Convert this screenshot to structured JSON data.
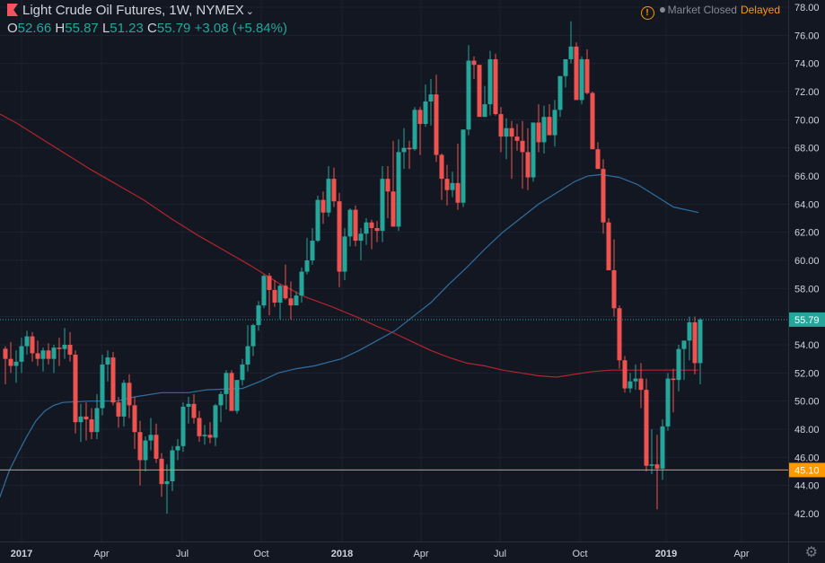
{
  "header": {
    "symbol_title": "Light Crude Oil Futures, 1W, NYMEX",
    "ohlc": {
      "open_label": "O",
      "open": "52.66",
      "high_label": "H",
      "high": "55.87",
      "low_label": "L",
      "low": "51.23",
      "close_label": "C",
      "close": "55.79",
      "change": "+3.08 (+5.84%)"
    },
    "market_status": "Market Closed",
    "data_status": "Delayed"
  },
  "icons": {
    "flag": "flag-icon",
    "chevron": "chevron-down-icon",
    "warning": "warning-icon",
    "settings": "gear-icon"
  },
  "colors": {
    "background": "#131722",
    "up": "#26a69a",
    "down": "#ef5350",
    "ma_fast": "#2f6fa0",
    "ma_slow": "#b3242c",
    "support_line": "#ff9800",
    "last_price": "#26a69a",
    "grid": "#1e2230",
    "axis_text": "#d1d4dc"
  },
  "chart_data": {
    "type": "candlestick",
    "ylim": [
      40.8,
      78.6
    ],
    "y_ticks": [
      42,
      44,
      46,
      48,
      50,
      52,
      54,
      56,
      58,
      60,
      62,
      64,
      66,
      68,
      70,
      72,
      74,
      76,
      78
    ],
    "y_tick_labels": [
      "42.00",
      "44.00",
      "46.00",
      "48.00",
      "50.00",
      "52.00",
      "54.00",
      "56.00",
      "58.00",
      "60.00",
      "62.00",
      "64.00",
      "66.00",
      "68.00",
      "70.00",
      "72.00",
      "74.00",
      "76.00",
      "78.00"
    ],
    "x_tick_labels": [
      "2017",
      "Apr",
      "Jul",
      "Oct",
      "2018",
      "Apr",
      "Jul",
      "Oct",
      "2019",
      "Apr"
    ],
    "last_price": 55.79,
    "last_price_label": "55.79",
    "support_level": 45.1,
    "support_label": "45.10",
    "grid": true,
    "series": [
      {
        "kind": "ohlc",
        "values": [
          [
            53.72,
            53.9,
            51.2,
            53.0
          ],
          [
            53.0,
            54.2,
            52.0,
            52.5
          ],
          [
            52.5,
            53.6,
            51.3,
            52.8
          ],
          [
            52.8,
            54.5,
            52.0,
            53.9
          ],
          [
            53.9,
            55.0,
            53.3,
            54.6
          ],
          [
            54.6,
            54.9,
            52.8,
            53.4
          ],
          [
            53.4,
            54.3,
            52.5,
            53.0
          ],
          [
            53.0,
            53.8,
            52.1,
            53.6
          ],
          [
            53.6,
            54.1,
            52.6,
            53.0
          ],
          [
            53.0,
            54.0,
            52.0,
            53.8
          ],
          [
            53.8,
            54.5,
            52.5,
            53.7
          ],
          [
            53.7,
            55.2,
            53.0,
            54.0
          ],
          [
            54.0,
            54.9,
            52.8,
            53.3
          ],
          [
            53.3,
            53.6,
            47.7,
            48.5
          ],
          [
            48.5,
            49.8,
            47.1,
            48.9
          ],
          [
            48.9,
            49.9,
            47.2,
            48.7
          ],
          [
            48.7,
            49.5,
            47.3,
            47.8
          ],
          [
            47.8,
            50.5,
            47.3,
            49.5
          ],
          [
            49.5,
            53.3,
            49.0,
            52.6
          ],
          [
            52.6,
            53.6,
            51.4,
            53.1
          ],
          [
            53.1,
            53.5,
            49.7,
            49.9
          ],
          [
            49.9,
            50.3,
            48.1,
            48.9
          ],
          [
            48.9,
            51.5,
            48.2,
            51.3
          ],
          [
            51.3,
            51.9,
            48.8,
            49.7
          ],
          [
            49.7,
            50.3,
            46.6,
            47.8
          ],
          [
            47.8,
            48.6,
            44.0,
            45.8
          ],
          [
            45.8,
            47.5,
            45.0,
            47.2
          ],
          [
            47.2,
            48.8,
            46.5,
            47.6
          ],
          [
            47.6,
            48.4,
            45.6,
            45.9
          ],
          [
            45.9,
            46.3,
            43.2,
            44.1
          ],
          [
            44.1,
            45.5,
            42.0,
            44.3
          ],
          [
            44.3,
            46.8,
            43.6,
            46.5
          ],
          [
            46.5,
            47.3,
            45.8,
            46.8
          ],
          [
            46.8,
            49.9,
            46.4,
            49.6
          ],
          [
            49.6,
            50.3,
            48.4,
            49.8
          ],
          [
            49.8,
            50.5,
            48.4,
            48.8
          ],
          [
            48.8,
            49.3,
            47.1,
            47.5
          ],
          [
            47.5,
            48.3,
            46.9,
            47.6
          ],
          [
            47.6,
            48.5,
            47.0,
            47.4
          ],
          [
            47.4,
            49.8,
            46.8,
            49.7
          ],
          [
            49.7,
            50.7,
            48.5,
            50.5
          ],
          [
            50.5,
            52.2,
            49.4,
            52.0
          ],
          [
            52.0,
            52.2,
            49.3,
            49.3
          ],
          [
            49.3,
            51.2,
            49.1,
            51.5
          ],
          [
            51.5,
            53.0,
            51.1,
            52.6
          ],
          [
            52.6,
            55.4,
            52.1,
            53.9
          ],
          [
            53.9,
            55.5,
            53.2,
            55.4
          ],
          [
            55.4,
            57.1,
            55.0,
            56.8
          ],
          [
            56.8,
            59.0,
            56.6,
            58.9
          ],
          [
            58.9,
            59.1,
            56.1,
            57.9
          ],
          [
            57.9,
            58.6,
            56.7,
            57.0
          ],
          [
            57.0,
            58.3,
            55.8,
            58.2
          ],
          [
            58.2,
            59.7,
            57.2,
            57.3
          ],
          [
            57.3,
            58.5,
            55.8,
            56.8
          ],
          [
            56.8,
            57.8,
            57.0,
            57.5
          ],
          [
            57.5,
            59.5,
            57.0,
            59.2
          ],
          [
            59.2,
            61.6,
            59.0,
            60.0
          ],
          [
            60.0,
            62.3,
            59.7,
            61.4
          ],
          [
            61.4,
            64.6,
            61.3,
            64.3
          ],
          [
            64.3,
            64.9,
            62.6,
            63.4
          ],
          [
            63.4,
            66.7,
            63.1,
            65.8
          ],
          [
            65.8,
            66.6,
            63.8,
            64.2
          ],
          [
            64.2,
            64.8,
            58.1,
            59.2
          ],
          [
            59.2,
            62.3,
            58.6,
            61.7
          ],
          [
            61.7,
            63.7,
            61.0,
            63.6
          ],
          [
            63.6,
            63.9,
            61.0,
            61.4
          ],
          [
            61.4,
            62.3,
            60.0,
            61.9
          ],
          [
            61.9,
            63.0,
            61.1,
            62.7
          ],
          [
            62.7,
            62.9,
            60.8,
            62.3
          ],
          [
            62.3,
            62.8,
            61.3,
            62.1
          ],
          [
            62.1,
            66.7,
            61.3,
            65.8
          ],
          [
            65.8,
            66.7,
            63.0,
            64.9
          ],
          [
            64.9,
            68.5,
            62.5,
            62.4
          ],
          [
            62.4,
            68.6,
            62.1,
            67.7
          ],
          [
            67.7,
            69.4,
            66.5,
            68.0
          ],
          [
            68.0,
            68.5,
            66.5,
            67.9
          ],
          [
            67.9,
            70.9,
            67.8,
            70.7
          ],
          [
            70.7,
            70.9,
            67.5,
            69.7
          ],
          [
            69.7,
            72.5,
            69.5,
            71.3
          ],
          [
            71.3,
            72.9,
            69.6,
            71.8
          ],
          [
            71.8,
            73.2,
            67.0,
            67.5
          ],
          [
            67.5,
            67.6,
            64.3,
            65.8
          ],
          [
            65.8,
            66.8,
            63.9,
            65.0
          ],
          [
            65.0,
            66.3,
            64.5,
            65.5
          ],
          [
            65.5,
            68.3,
            63.6,
            64.1
          ],
          [
            64.1,
            69.3,
            63.8,
            69.3
          ],
          [
            69.3,
            75.3,
            68.9,
            74.2
          ],
          [
            74.2,
            74.5,
            72.9,
            73.9
          ],
          [
            73.9,
            73.9,
            70.4,
            70.2
          ],
          [
            70.2,
            72.4,
            70.5,
            71.1
          ],
          [
            71.1,
            74.9,
            70.3,
            74.3
          ],
          [
            74.3,
            74.7,
            70.3,
            70.4
          ],
          [
            70.4,
            70.9,
            67.7,
            68.8
          ],
          [
            68.8,
            70.1,
            67.2,
            69.4
          ],
          [
            69.4,
            69.9,
            65.8,
            68.8
          ],
          [
            68.8,
            69.7,
            67.8,
            68.5
          ],
          [
            68.5,
            69.9,
            65.1,
            67.7
          ],
          [
            67.7,
            69.4,
            65.0,
            65.9
          ],
          [
            65.9,
            69.7,
            65.6,
            69.8
          ],
          [
            69.8,
            71.1,
            67.7,
            68.4
          ],
          [
            68.4,
            71.0,
            67.6,
            70.2
          ],
          [
            70.2,
            71.1,
            68.9,
            68.9
          ],
          [
            68.9,
            71.4,
            68.1,
            70.7
          ],
          [
            70.7,
            73.1,
            70.2,
            73.1
          ],
          [
            73.1,
            74.2,
            72.3,
            74.3
          ],
          [
            74.3,
            77.0,
            74.0,
            75.2
          ],
          [
            75.2,
            75.5,
            71.8,
            71.4
          ],
          [
            71.4,
            74.5,
            71.1,
            74.3
          ],
          [
            74.3,
            75.0,
            71.8,
            71.9
          ],
          [
            71.9,
            72.0,
            68.4,
            67.9
          ],
          [
            67.9,
            68.4,
            66.9,
            66.5
          ],
          [
            66.5,
            67.2,
            61.9,
            62.7
          ],
          [
            62.7,
            63.0,
            59.7,
            59.3
          ],
          [
            59.3,
            61.5,
            56.0,
            56.6
          ],
          [
            56.6,
            56.8,
            52.3,
            52.9
          ],
          [
            52.9,
            53.2,
            50.6,
            50.9
          ],
          [
            50.9,
            52.0,
            50.6,
            51.4
          ],
          [
            51.4,
            52.6,
            50.8,
            51.6
          ],
          [
            51.6,
            52.7,
            49.5,
            50.8
          ],
          [
            50.8,
            51.6,
            45.0,
            45.4
          ],
          [
            45.4,
            48.0,
            44.8,
            45.5
          ],
          [
            45.5,
            47.6,
            42.3,
            45.2
          ],
          [
            45.2,
            48.7,
            44.4,
            48.2
          ],
          [
            48.2,
            52.0,
            47.9,
            51.6
          ],
          [
            51.6,
            52.3,
            49.2,
            51.5
          ],
          [
            51.5,
            54.0,
            50.7,
            53.7
          ],
          [
            53.7,
            54.2,
            51.5,
            54.3
          ],
          [
            54.3,
            56.0,
            52.9,
            55.6
          ],
          [
            55.6,
            56.0,
            51.9,
            52.7
          ],
          [
            52.7,
            55.9,
            51.2,
            55.8
          ]
        ]
      },
      {
        "kind": "moving_average_fast",
        "values": [
          [
            -4,
            42.8
          ],
          [
            0,
            43.2
          ],
          [
            10,
            45.0
          ],
          [
            20,
            46.3
          ],
          [
            30,
            47.5
          ],
          [
            40,
            48.6
          ],
          [
            50,
            49.3
          ],
          [
            60,
            49.7
          ],
          [
            70,
            49.9
          ],
          [
            100,
            50.0
          ],
          [
            130,
            50.0
          ],
          [
            150,
            50.3
          ],
          [
            180,
            50.6
          ],
          [
            210,
            50.6
          ],
          [
            230,
            50.8
          ],
          [
            270,
            50.9
          ],
          [
            290,
            51.4
          ],
          [
            310,
            52.0
          ],
          [
            330,
            52.3
          ],
          [
            350,
            52.5
          ],
          [
            380,
            53.0
          ],
          [
            400,
            53.6
          ],
          [
            420,
            54.3
          ],
          [
            440,
            55.0
          ],
          [
            460,
            56.0
          ],
          [
            480,
            57.0
          ],
          [
            500,
            58.3
          ],
          [
            520,
            59.5
          ],
          [
            540,
            60.8
          ],
          [
            560,
            62.0
          ],
          [
            580,
            63.0
          ],
          [
            600,
            64.0
          ],
          [
            620,
            64.8
          ],
          [
            640,
            65.6
          ],
          [
            655,
            66.0
          ],
          [
            670,
            66.1
          ],
          [
            690,
            65.9
          ],
          [
            710,
            65.4
          ],
          [
            730,
            64.6
          ],
          [
            750,
            63.8
          ],
          [
            778,
            63.4
          ]
        ]
      },
      {
        "kind": "moving_average_slow",
        "values": [
          [
            0,
            70.4
          ],
          [
            20,
            69.7
          ],
          [
            40,
            68.9
          ],
          [
            60,
            68.1
          ],
          [
            80,
            67.3
          ],
          [
            100,
            66.5
          ],
          [
            130,
            65.4
          ],
          [
            160,
            64.3
          ],
          [
            190,
            63.0
          ],
          [
            220,
            61.8
          ],
          [
            250,
            60.7
          ],
          [
            280,
            59.6
          ],
          [
            310,
            58.4
          ],
          [
            340,
            57.4
          ],
          [
            370,
            56.7
          ],
          [
            400,
            55.9
          ],
          [
            420,
            55.3
          ],
          [
            440,
            54.8
          ],
          [
            460,
            54.2
          ],
          [
            480,
            53.6
          ],
          [
            500,
            53.1
          ],
          [
            520,
            52.7
          ],
          [
            540,
            52.5
          ],
          [
            560,
            52.2
          ],
          [
            580,
            52.0
          ],
          [
            600,
            51.8
          ],
          [
            620,
            51.7
          ],
          [
            640,
            51.9
          ],
          [
            660,
            52.1
          ],
          [
            680,
            52.2
          ],
          [
            700,
            52.2
          ],
          [
            720,
            52.2
          ],
          [
            778,
            52.2
          ]
        ]
      }
    ]
  }
}
